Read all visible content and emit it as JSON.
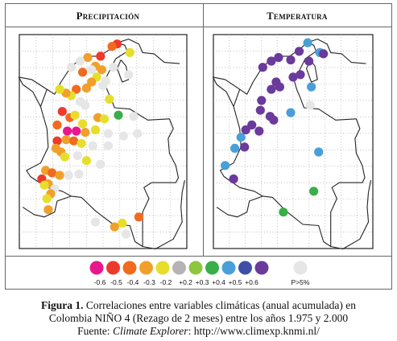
{
  "panels": {
    "precipitation": {
      "title": "Precipitación"
    },
    "temperature": {
      "title": "Temperatura"
    }
  },
  "legend": {
    "items": [
      {
        "label": "-0.6",
        "color": "#e8188c"
      },
      {
        "label": "-0.5",
        "color": "#ee3a2a"
      },
      {
        "label": "-0.4",
        "color": "#f26a1e"
      },
      {
        "label": "-0.3",
        "color": "#f0a02a"
      },
      {
        "label": "-0.2",
        "color": "#e6de2a"
      },
      {
        "label": "+0.2",
        "color": "#b4b4b4"
      },
      {
        "label": "+0.3",
        "color": "#8ec63f"
      },
      {
        "label": "+0.4",
        "color": "#3aae49"
      },
      {
        "label": "+0.5",
        "color": "#4a9fd8"
      },
      {
        "label": "+0.6",
        "color": "#3f4fa8"
      },
      {
        "label": "",
        "color": "#6a3a9c"
      },
      {
        "label": "P>5%",
        "color": "#e6e6e6"
      }
    ]
  },
  "caption": {
    "figure_label": "Figura 1.",
    "line1_text": "Correlaciones entre variables climáticas (anual acumulada) en",
    "line2_text": "Colombia NIÑO 4 (Rezago de 2 meses) entre los años 1.975 y 2.000",
    "source_prefix": "Fuente: ",
    "source_name": "Climate Explorer",
    "source_url": ": http://www.climexp.knmi.nl/"
  },
  "map_data": {
    "precipitation_points": [
      {
        "lon": -71.9,
        "lat": 12.3,
        "r": -0.5
      },
      {
        "lon": -72.3,
        "lat": 12.1,
        "r": -0.4
      },
      {
        "lon": -73.2,
        "lat": 11.3,
        "r": -0.5
      },
      {
        "lon": -74.2,
        "lat": 11.2,
        "r": -0.3
      },
      {
        "lon": -70.9,
        "lat": 11.6,
        "r": -0.2
      },
      {
        "lon": -74.8,
        "lat": 10.9,
        "r": 0.0
      },
      {
        "lon": -75.5,
        "lat": 10.4,
        "r": 0.0
      },
      {
        "lon": -73.6,
        "lat": 10.5,
        "r": -0.3
      },
      {
        "lon": -73.1,
        "lat": 10.2,
        "r": -0.3
      },
      {
        "lon": -74.6,
        "lat": 10.0,
        "r": -0.4
      },
      {
        "lon": -72.2,
        "lat": 10.4,
        "r": 0.0
      },
      {
        "lon": -73.5,
        "lat": 9.6,
        "r": -0.2
      },
      {
        "lon": -73.9,
        "lat": 9.2,
        "r": -0.3
      },
      {
        "lon": -74.3,
        "lat": 8.7,
        "r": -0.3
      },
      {
        "lon": -75.1,
        "lat": 8.6,
        "r": -0.4
      },
      {
        "lon": -73.0,
        "lat": 8.9,
        "r": 0.0
      },
      {
        "lon": -75.5,
        "lat": 8.1,
        "r": -0.2
      },
      {
        "lon": -75.9,
        "lat": 8.3,
        "r": -0.3
      },
      {
        "lon": -74.8,
        "lat": 7.6,
        "r": 0.0
      },
      {
        "lon": -76.4,
        "lat": 8.6,
        "r": -0.2
      },
      {
        "lon": -74.4,
        "lat": 7.3,
        "r": 0.0
      },
      {
        "lon": -72.5,
        "lat": 7.8,
        "r": -0.2
      },
      {
        "lon": -76.2,
        "lat": 6.8,
        "r": -0.5
      },
      {
        "lon": -75.6,
        "lat": 6.3,
        "r": -0.4
      },
      {
        "lon": -75.2,
        "lat": 6.5,
        "r": -0.2
      },
      {
        "lon": -74.6,
        "lat": 5.8,
        "r": -0.2
      },
      {
        "lon": -73.4,
        "lat": 6.3,
        "r": -0.3
      },
      {
        "lon": -72.9,
        "lat": 6.2,
        "r": -0.2
      },
      {
        "lon": -71.8,
        "lat": 6.5,
        "r": 0.4
      },
      {
        "lon": -70.6,
        "lat": 6.4,
        "r": 0.0
      },
      {
        "lon": -76.6,
        "lat": 5.7,
        "r": -0.4
      },
      {
        "lon": -75.8,
        "lat": 5.2,
        "r": -0.6
      },
      {
        "lon": -75.1,
        "lat": 5.2,
        "r": -0.6
      },
      {
        "lon": -74.4,
        "lat": 5.1,
        "r": -0.3
      },
      {
        "lon": -73.6,
        "lat": 5.3,
        "r": -0.2
      },
      {
        "lon": -72.6,
        "lat": 5.0,
        "r": 0.0
      },
      {
        "lon": -71.4,
        "lat": 4.8,
        "r": 0.0
      },
      {
        "lon": -70.3,
        "lat": 5.0,
        "r": 0.0
      },
      {
        "lon": -75.9,
        "lat": 4.5,
        "r": -0.3
      },
      {
        "lon": -76.6,
        "lat": 4.4,
        "r": -0.5
      },
      {
        "lon": -75.3,
        "lat": 4.4,
        "r": -0.4
      },
      {
        "lon": -74.7,
        "lat": 4.2,
        "r": -0.2
      },
      {
        "lon": -73.8,
        "lat": 4.0,
        "r": 0.0
      },
      {
        "lon": -72.6,
        "lat": 4.0,
        "r": 0.0
      },
      {
        "lon": -76.7,
        "lat": 3.8,
        "r": -0.3
      },
      {
        "lon": -76.3,
        "lat": 3.5,
        "r": -0.3
      },
      {
        "lon": -76.0,
        "lat": 3.1,
        "r": -0.2
      },
      {
        "lon": -75.0,
        "lat": 3.2,
        "r": 0.0
      },
      {
        "lon": -74.3,
        "lat": 2.8,
        "r": -0.2
      },
      {
        "lon": -73.2,
        "lat": 2.5,
        "r": 0.0
      },
      {
        "lon": -77.5,
        "lat": 2.0,
        "r": -0.3
      },
      {
        "lon": -77.0,
        "lat": 1.8,
        "r": -0.4
      },
      {
        "lon": -76.4,
        "lat": 1.6,
        "r": -0.3
      },
      {
        "lon": -75.7,
        "lat": 1.6,
        "r": 0.0
      },
      {
        "lon": -74.9,
        "lat": 1.7,
        "r": 0.0
      },
      {
        "lon": -77.8,
        "lat": 1.3,
        "r": -0.5
      },
      {
        "lon": -77.3,
        "lat": 0.9,
        "r": -0.3
      },
      {
        "lon": -77.6,
        "lat": 0.8,
        "r": -0.2
      },
      {
        "lon": -76.8,
        "lat": 0.5,
        "r": 0.0
      },
      {
        "lon": -77.1,
        "lat": 0.1,
        "r": -0.3
      },
      {
        "lon": -77.4,
        "lat": -0.3,
        "r": -0.2
      },
      {
        "lon": -70.2,
        "lat": -1.8,
        "r": -0.4
      },
      {
        "lon": -71.5,
        "lat": -2.3,
        "r": -0.2
      },
      {
        "lon": -72.1,
        "lat": -2.6,
        "r": -0.3
      },
      {
        "lon": -73.6,
        "lat": -2.2,
        "r": 0.0
      },
      {
        "lon": -77.3,
        "lat": -1.2,
        "r": -0.3
      },
      {
        "lon": -71.2,
        "lat": -3.2,
        "r": 0.0
      },
      {
        "lon": -73.9,
        "lat": 10.2,
        "r": 0.0
      },
      {
        "lon": -71.0,
        "lat": 9.8,
        "r": 0.0
      },
      {
        "lon": -72.8,
        "lat": 9.3,
        "r": 0.0
      }
    ],
    "temperature_points": [
      {
        "lon": -71.8,
        "lat": 12.4,
        "r": 0.5
      },
      {
        "lon": -72.5,
        "lat": 11.7,
        "r": 0.6
      },
      {
        "lon": -74.2,
        "lat": 11.2,
        "r": 0.6
      },
      {
        "lon": -74.8,
        "lat": 10.9,
        "r": 0.6
      },
      {
        "lon": -75.5,
        "lat": 10.4,
        "r": 0.6
      },
      {
        "lon": -73.2,
        "lat": 11.0,
        "r": 0.6
      },
      {
        "lon": -70.8,
        "lat": 11.6,
        "r": 0.5
      },
      {
        "lon": -70.5,
        "lat": 11.5,
        "r": 0.6
      },
      {
        "lon": -71.7,
        "lat": 10.9,
        "r": 0.6
      },
      {
        "lon": -72.4,
        "lat": 9.8,
        "r": 0.6
      },
      {
        "lon": -73.0,
        "lat": 9.6,
        "r": 0.6
      },
      {
        "lon": -74.4,
        "lat": 9.2,
        "r": 0.6
      },
      {
        "lon": -74.1,
        "lat": 8.8,
        "r": 0.6
      },
      {
        "lon": -74.8,
        "lat": 8.6,
        "r": 0.6
      },
      {
        "lon": -71.5,
        "lat": 8.8,
        "r": 0.5
      },
      {
        "lon": -75.6,
        "lat": 7.7,
        "r": 0.6
      },
      {
        "lon": -75.7,
        "lat": 6.9,
        "r": 0.6
      },
      {
        "lon": -74.9,
        "lat": 6.4,
        "r": 0.6
      },
      {
        "lon": -74.6,
        "lat": 6.1,
        "r": 0.6
      },
      {
        "lon": -73.2,
        "lat": 6.7,
        "r": 0.5
      },
      {
        "lon": -76.4,
        "lat": 5.7,
        "r": 0.6
      },
      {
        "lon": -76.9,
        "lat": 5.3,
        "r": 0.6
      },
      {
        "lon": -75.8,
        "lat": 5.2,
        "r": 0.6
      },
      {
        "lon": -77.3,
        "lat": 4.7,
        "r": 0.5
      },
      {
        "lon": -77.0,
        "lat": 3.9,
        "r": 0.6
      },
      {
        "lon": -77.8,
        "lat": 3.8,
        "r": 0.5
      },
      {
        "lon": -78.6,
        "lat": 2.4,
        "r": 0.5
      },
      {
        "lon": -77.9,
        "lat": 1.3,
        "r": 0.6
      },
      {
        "lon": -70.9,
        "lat": 3.5,
        "r": 0.5
      },
      {
        "lon": -71.3,
        "lat": 0.3,
        "r": 0.4
      },
      {
        "lon": -73.8,
        "lat": -1.4,
        "r": 0.4
      },
      {
        "lon": -71.6,
        "lat": 7.3,
        "r": 0.0
      }
    ]
  }
}
